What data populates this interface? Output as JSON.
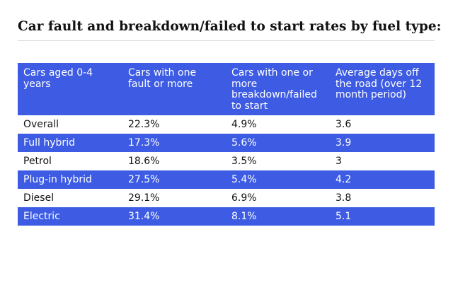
{
  "title": "Car fault and breakdown/failed to start rates by fuel type:",
  "colors": {
    "header_bg": "#3d5ce3",
    "band_bg": "#3d5ce3",
    "text_dark": "#121212",
    "text_light": "#ffffff"
  },
  "chart_data": {
    "type": "table",
    "title": "Car fault and breakdown/failed to start rates by fuel type:",
    "columns": [
      "Cars aged 0-4 years",
      "Cars with one fault or more",
      "Cars with one or more breakdown/failed to start",
      "Average days off the road (over 12 month period)"
    ],
    "rows": [
      [
        "Overall",
        "22.3%",
        "4.9%",
        "3.6"
      ],
      [
        "Full hybrid",
        "17.3%",
        "5.6%",
        "3.9"
      ],
      [
        "Petrol",
        "18.6%",
        "3.5%",
        "3"
      ],
      [
        "Plug-in hybrid",
        "27.5%",
        "5.4%",
        "4.2"
      ],
      [
        "Diesel",
        "29.1%",
        "6.9%",
        "3.8"
      ],
      [
        "Electric",
        "31.4%",
        "8.1%",
        "5.1"
      ]
    ]
  }
}
